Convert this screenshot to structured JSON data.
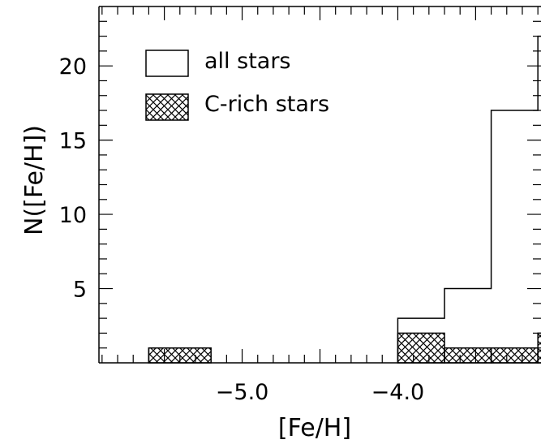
{
  "chart_data": {
    "type": "histogram",
    "xlabel": "[Fe/H]",
    "ylabel": "N([Fe/H])",
    "xlim": [
      -5.92,
      -3.08
    ],
    "ylim": [
      0,
      24
    ],
    "x_tick_labels": [
      {
        "value": -5.0,
        "label": "−5.0"
      },
      {
        "value": -4.0,
        "label": "−4.0"
      }
    ],
    "y_tick_labels": [
      {
        "value": 5,
        "label": "5"
      },
      {
        "value": 10,
        "label": "10"
      },
      {
        "value": 15,
        "label": "15"
      },
      {
        "value": 20,
        "label": "20"
      }
    ],
    "x_minor_step": 0.1,
    "y_minor_step": 1,
    "legend_position": "top-left",
    "series": [
      {
        "name": "all stars",
        "style": "step-outline",
        "bins": [
          {
            "x0": -5.6,
            "x1": -5.3,
            "value": 1
          },
          {
            "x0": -5.3,
            "x1": -5.2,
            "value": 1
          },
          {
            "x0": -4.0,
            "x1": -3.7,
            "value": 3
          },
          {
            "x0": -3.7,
            "x1": -3.4,
            "value": 5
          },
          {
            "x0": -3.4,
            "x1": -3.1,
            "value": 17
          },
          {
            "x0": -3.1,
            "x1": -2.8,
            "value": 22
          }
        ]
      },
      {
        "name": "C-rich stars",
        "style": "crosshatch",
        "bins": [
          {
            "x0": -5.6,
            "x1": -5.2,
            "value": 1
          },
          {
            "x0": -4.0,
            "x1": -3.7,
            "value": 2
          },
          {
            "x0": -3.7,
            "x1": -3.4,
            "value": 1
          },
          {
            "x0": -3.4,
            "x1": -3.1,
            "value": 1
          },
          {
            "x0": -3.1,
            "x1": -2.8,
            "value": 2
          }
        ]
      }
    ]
  }
}
